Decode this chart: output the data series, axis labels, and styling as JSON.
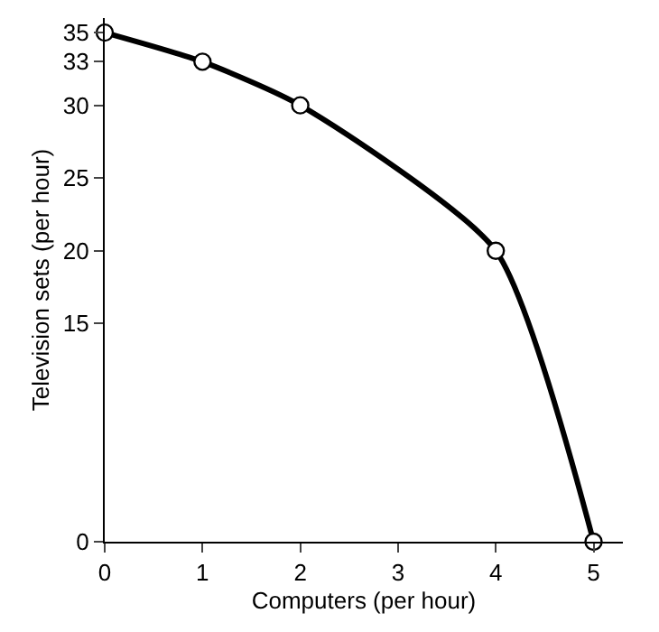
{
  "chart_data": {
    "type": "line",
    "xlabel": "Computers (per hour)",
    "ylabel": "Television sets (per hour)",
    "x": [
      0,
      1,
      2,
      4,
      5
    ],
    "series": [
      {
        "color": "#000000",
        "values": [
          35,
          33,
          30,
          20,
          0
        ]
      }
    ],
    "xlim": [
      0,
      5.3
    ],
    "xticks": [
      0,
      1,
      2,
      3,
      4,
      5
    ],
    "ylim": [
      0,
      36
    ],
    "yticks": [
      0,
      15,
      20,
      25,
      30,
      33,
      35
    ],
    "marker": "circle",
    "line_style": "solid"
  }
}
